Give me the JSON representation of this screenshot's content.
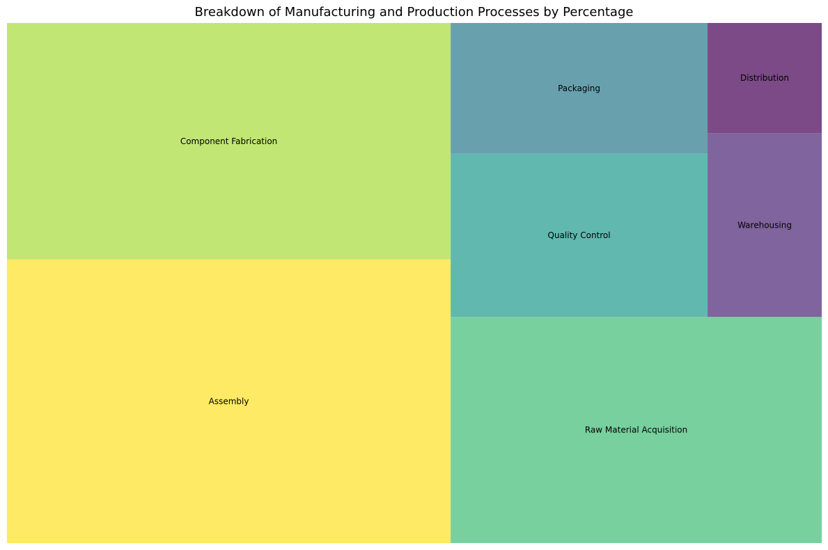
{
  "chart_data": {
    "type": "treemap",
    "title": "Breakdown of Manufacturing and Production Processes by Percentage",
    "unit": "percent",
    "categories": [
      "Raw Material Acquisition",
      "Component Fabrication",
      "Assembly",
      "Quality Control",
      "Packaging",
      "Warehousing",
      "Distribution"
    ],
    "values": [
      20,
      25,
      30,
      10,
      8,
      5,
      3
    ],
    "colors": [
      "#78d09e",
      "#c1e674",
      "#feea65",
      "#61b8ae",
      "#68a0ae",
      "#80649e",
      "#7c4a86"
    ],
    "opacity": 0.7,
    "legend": "none",
    "axes": "off"
  }
}
